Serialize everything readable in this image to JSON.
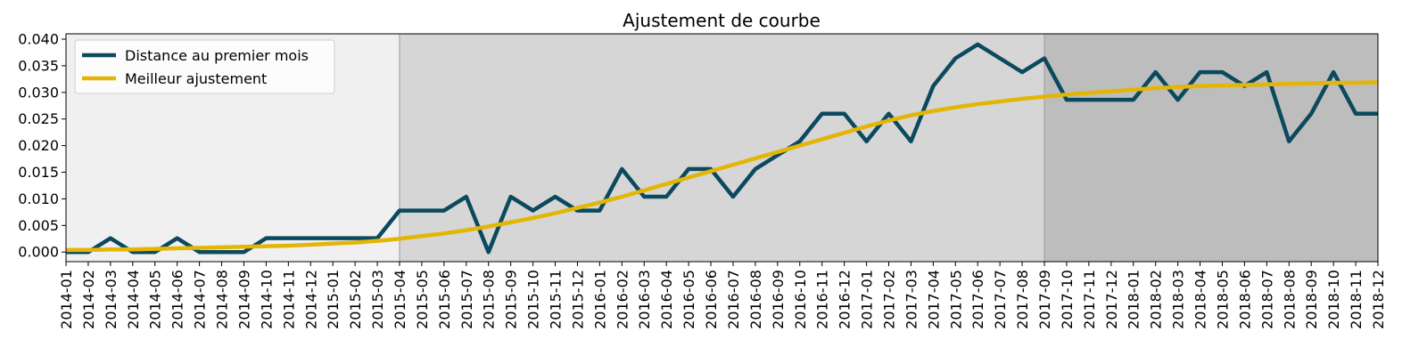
{
  "chart_data": {
    "type": "line",
    "title": "Ajustement de courbe",
    "xlabel": "",
    "ylabel": "",
    "ylim": [
      -0.0018,
      0.041
    ],
    "yticks": [
      "0.000",
      "0.005",
      "0.010",
      "0.015",
      "0.020",
      "0.025",
      "0.030",
      "0.035",
      "0.040"
    ],
    "categories": [
      "2014-01",
      "2014-02",
      "2014-03",
      "2014-04",
      "2014-05",
      "2014-06",
      "2014-07",
      "2014-08",
      "2014-09",
      "2014-10",
      "2014-11",
      "2014-12",
      "2015-01",
      "2015-02",
      "2015-03",
      "2015-04",
      "2015-05",
      "2015-06",
      "2015-07",
      "2015-08",
      "2015-09",
      "2015-10",
      "2015-11",
      "2015-12",
      "2016-01",
      "2016-02",
      "2016-03",
      "2016-04",
      "2016-05",
      "2016-06",
      "2016-07",
      "2016-08",
      "2016-09",
      "2016-10",
      "2016-11",
      "2016-12",
      "2017-01",
      "2017-02",
      "2017-03",
      "2017-04",
      "2017-05",
      "2017-06",
      "2017-07",
      "2017-08",
      "2017-09",
      "2017-10",
      "2017-11",
      "2017-12",
      "2018-01",
      "2018-02",
      "2018-03",
      "2018-04",
      "2018-05",
      "2018-06",
      "2018-07",
      "2018-08",
      "2018-09",
      "2018-10",
      "2018-11",
      "2018-12"
    ],
    "grid": false,
    "legend_position": "top-left",
    "background_bands": [
      {
        "from": "2014-01",
        "to": "2015-04",
        "color": "#f0f0f0"
      },
      {
        "from": "2015-04",
        "to": "2017-09",
        "color": "#d6d6d6"
      },
      {
        "from": "2017-09",
        "to": "2018-12",
        "color": "#bdbdbd"
      }
    ],
    "series": [
      {
        "name": "Distance au premier mois",
        "color": "#0b4a5e",
        "values": [
          0.0,
          0.0,
          0.0026,
          0.0,
          0.0,
          0.0026,
          0.0,
          0.0,
          0.0,
          0.0026,
          0.0026,
          0.0026,
          0.0026,
          0.0026,
          0.0026,
          0.0078,
          0.0078,
          0.0078,
          0.0104,
          0.0,
          0.0104,
          0.0078,
          0.0104,
          0.0078,
          0.0078,
          0.0156,
          0.0104,
          0.0104,
          0.0156,
          0.0156,
          0.0104,
          0.0156,
          0.0182,
          0.0208,
          0.026,
          0.026,
          0.0208,
          0.026,
          0.0208,
          0.0312,
          0.0364,
          0.039,
          0.0364,
          0.0338,
          0.0364,
          0.0286,
          0.0286,
          0.0286,
          0.0286,
          0.0338,
          0.0286,
          0.0338,
          0.0338,
          0.0312,
          0.0338,
          0.0208,
          0.026,
          0.0338,
          0.026,
          0.026
        ]
      },
      {
        "name": "Meilleur ajustement",
        "color": "#e3b505",
        "values": [
          0.0004,
          0.0004,
          0.0005,
          0.0005,
          0.0006,
          0.0007,
          0.0008,
          0.0009,
          0.001,
          0.0011,
          0.0012,
          0.0014,
          0.0016,
          0.0018,
          0.0021,
          0.0025,
          0.003,
          0.0035,
          0.0041,
          0.0048,
          0.0056,
          0.0064,
          0.0073,
          0.0083,
          0.0093,
          0.0104,
          0.0116,
          0.0128,
          0.014,
          0.0152,
          0.0164,
          0.0176,
          0.0188,
          0.02,
          0.0212,
          0.0224,
          0.0236,
          0.0247,
          0.0257,
          0.0265,
          0.0272,
          0.0278,
          0.0283,
          0.0288,
          0.0292,
          0.0296,
          0.0299,
          0.0302,
          0.0305,
          0.0308,
          0.031,
          0.0312,
          0.0313,
          0.0314,
          0.0315,
          0.0316,
          0.0317,
          0.0318,
          0.0318,
          0.0319
        ]
      }
    ]
  }
}
